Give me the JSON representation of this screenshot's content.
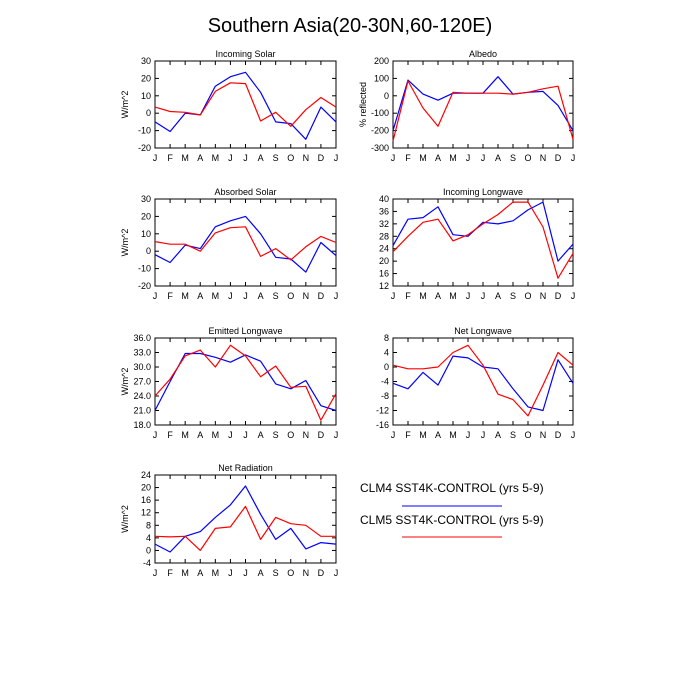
{
  "figure": {
    "title": "Southern Asia(20-30N,60-120E)"
  },
  "months": [
    "J",
    "F",
    "M",
    "A",
    "M",
    "J",
    "J",
    "A",
    "S",
    "O",
    "N",
    "D",
    "J"
  ],
  "colors": {
    "clm4": "#0000ff",
    "clm5": "#ff0000"
  },
  "legend": {
    "clm4": "CLM4 SST4K-CONTROL (yrs 5-9)",
    "clm5": "CLM5 SST4K-CONTROL (yrs 5-9)"
  },
  "chart_data": [
    {
      "type": "line",
      "title": "Incoming Solar",
      "ylabel": "W/m^2",
      "ylim": [
        -20,
        30
      ],
      "yticks": [
        -20,
        -10,
        0,
        10,
        20,
        30
      ],
      "categories": [
        "J",
        "F",
        "M",
        "A",
        "M",
        "J",
        "J",
        "A",
        "S",
        "O",
        "N",
        "D",
        "J"
      ],
      "series": [
        {
          "name": "CLM4 SST4K-CONTROL (yrs 5-9)",
          "values": [
            -5,
            -10.5,
            0,
            -1,
            15.5,
            21,
            23.5,
            12,
            -5,
            -6,
            -15,
            3.5,
            -5
          ]
        },
        {
          "name": "CLM5 SST4K-CONTROL (yrs 5-9)",
          "values": [
            3.5,
            1,
            0.5,
            -1,
            12.5,
            17.5,
            17,
            -4.5,
            0.5,
            -7.5,
            2,
            9,
            3.5
          ]
        }
      ]
    },
    {
      "type": "line",
      "title": "Albedo",
      "ylabel": "% reflected",
      "ylim": [
        -300,
        200
      ],
      "yticks": [
        -300,
        -200,
        -100,
        0,
        100,
        200
      ],
      "categories": [
        "J",
        "F",
        "M",
        "A",
        "M",
        "J",
        "J",
        "A",
        "S",
        "O",
        "N",
        "D",
        "J"
      ],
      "series": [
        {
          "name": "CLM4 SST4K-CONTROL (yrs 5-9)",
          "values": [
            -200,
            90,
            10,
            -25,
            15,
            15,
            15,
            110,
            10,
            20,
            25,
            -55,
            -200
          ]
        },
        {
          "name": "CLM5 SST4K-CONTROL (yrs 5-9)",
          "values": [
            -260,
            85,
            -70,
            -175,
            20,
            15,
            15,
            15,
            10,
            20,
            40,
            55,
            -250
          ]
        }
      ]
    },
    {
      "type": "line",
      "title": "Absorbed Solar",
      "ylabel": "W/m^2",
      "ylim": [
        -20,
        30
      ],
      "yticks": [
        -20,
        -10,
        0,
        10,
        20,
        30
      ],
      "categories": [
        "J",
        "F",
        "M",
        "A",
        "M",
        "J",
        "J",
        "A",
        "S",
        "O",
        "N",
        "D",
        "J"
      ],
      "series": [
        {
          "name": "CLM4 SST4K-CONTROL (yrs 5-9)",
          "values": [
            -2,
            -6.5,
            3.5,
            1.5,
            14,
            17.5,
            20,
            10,
            -3.5,
            -4.5,
            -12,
            5,
            -2.5
          ]
        },
        {
          "name": "CLM5 SST4K-CONTROL (yrs 5-9)",
          "values": [
            5.5,
            4,
            4,
            0,
            10.5,
            13.5,
            14,
            -3,
            1.5,
            -5,
            2.5,
            8.5,
            5
          ]
        }
      ]
    },
    {
      "type": "line",
      "title": "Incoming Longwave",
      "ylabel": "",
      "ylim": [
        12,
        40
      ],
      "yticks": [
        12,
        16,
        20,
        24,
        28,
        32,
        36,
        40
      ],
      "categories": [
        "J",
        "F",
        "M",
        "A",
        "M",
        "J",
        "J",
        "A",
        "S",
        "O",
        "N",
        "D",
        "J"
      ],
      "series": [
        {
          "name": "CLM4 SST4K-CONTROL (yrs 5-9)",
          "values": [
            25,
            33.5,
            34,
            37.5,
            28.5,
            28,
            32.5,
            32,
            33,
            36.5,
            39,
            20,
            25.5
          ]
        },
        {
          "name": "CLM5 SST4K-CONTROL (yrs 5-9)",
          "values": [
            23,
            28,
            32.5,
            33.5,
            26.5,
            28.5,
            32,
            35,
            39,
            39,
            31,
            14.5,
            22.5
          ]
        }
      ]
    },
    {
      "type": "line",
      "title": "Emitted Longwave",
      "ylabel": "W/m^2",
      "ylim": [
        18,
        36
      ],
      "yticks": [
        "18.0",
        "21.0",
        "24.0",
        "27.0",
        "30.0",
        "33.0",
        "36.0"
      ],
      "categories": [
        "J",
        "F",
        "M",
        "A",
        "M",
        "J",
        "J",
        "A",
        "S",
        "O",
        "N",
        "D",
        "J"
      ],
      "series": [
        {
          "name": "CLM4 SST4K-CONTROL (yrs 5-9)",
          "values": [
            21,
            27,
            32.8,
            32.8,
            32,
            31,
            32.5,
            31.2,
            26.5,
            25.5,
            27.2,
            22,
            21
          ]
        },
        {
          "name": "CLM5 SST4K-CONTROL (yrs 5-9)",
          "values": [
            24,
            27.5,
            32.3,
            33.5,
            30,
            34.5,
            32.3,
            28,
            30.2,
            25.8,
            26,
            19,
            24.5
          ]
        }
      ]
    },
    {
      "type": "line",
      "title": "Net Longwave",
      "ylabel": "",
      "ylim": [
        -16,
        8
      ],
      "yticks": [
        -16,
        -12,
        -8,
        -4,
        0,
        4,
        8
      ],
      "categories": [
        "J",
        "F",
        "M",
        "A",
        "M",
        "J",
        "J",
        "A",
        "S",
        "O",
        "N",
        "D",
        "J"
      ],
      "series": [
        {
          "name": "CLM4 SST4K-CONTROL (yrs 5-9)",
          "values": [
            -4.5,
            -6,
            -1.5,
            -5,
            3,
            2.5,
            0,
            -0.5,
            -6,
            -11,
            -12,
            2,
            -4.5
          ]
        },
        {
          "name": "CLM5 SST4K-CONTROL (yrs 5-9)",
          "values": [
            0.5,
            -0.5,
            -0.5,
            0,
            4,
            6,
            0.5,
            -7.5,
            -9,
            -13.5,
            -5,
            4,
            0.5
          ]
        }
      ]
    },
    {
      "type": "line",
      "title": "Net Radiation",
      "ylabel": "W/m^2",
      "ylim": [
        -4,
        24
      ],
      "yticks": [
        -4,
        0,
        4,
        8,
        12,
        16,
        20,
        24
      ],
      "categories": [
        "J",
        "F",
        "M",
        "A",
        "M",
        "J",
        "J",
        "A",
        "S",
        "O",
        "N",
        "D",
        "J"
      ],
      "series": [
        {
          "name": "CLM4 SST4K-CONTROL (yrs 5-9)",
          "values": [
            2,
            -0.5,
            4.5,
            6,
            10.5,
            14.5,
            20.5,
            11.5,
            3.5,
            7,
            0.5,
            2.5,
            2
          ]
        },
        {
          "name": "CLM5 SST4K-CONTROL (yrs 5-9)",
          "values": [
            4.5,
            4.3,
            4.5,
            0,
            7,
            7.5,
            14,
            3.5,
            10.5,
            8.5,
            8,
            4.5,
            4.5
          ]
        }
      ]
    }
  ]
}
